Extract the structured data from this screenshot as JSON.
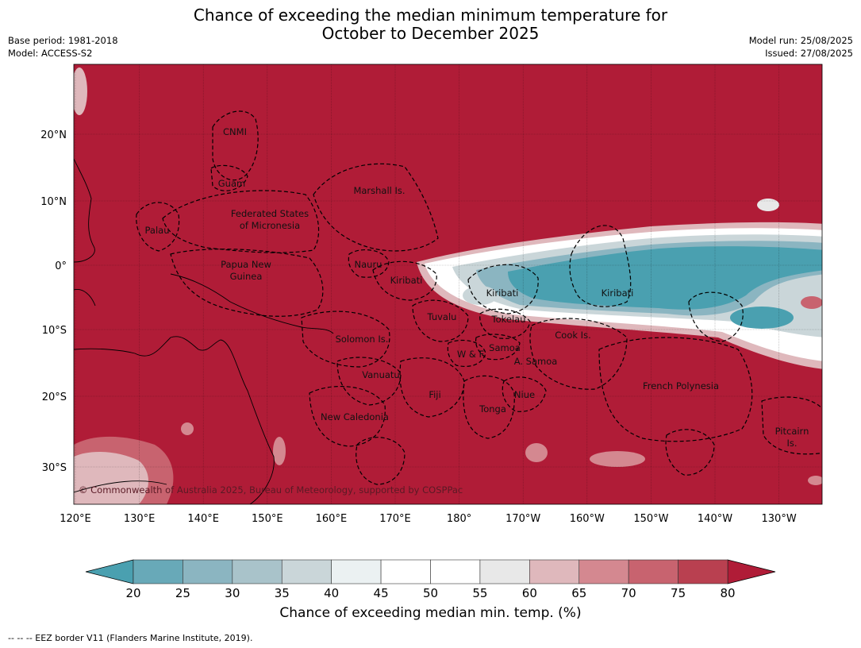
{
  "title_line1": "Chance of exceeding the median minimum temperature for",
  "title_line2": "October to December 2025",
  "meta_left": [
    "Base period: 1981-2018",
    "Model: ACCESS-S2"
  ],
  "meta_right": [
    "Model run: 25/08/2025",
    "Issued: 27/08/2025"
  ],
  "axes": {
    "lon_ticks": [
      "120°E",
      "130°E",
      "140°E",
      "150°E",
      "160°E",
      "170°E",
      "180°",
      "170°W",
      "160°W",
      "150°W",
      "140°W",
      "130°W"
    ],
    "lat_ticks": [
      "20°N",
      "10°N",
      "0°",
      "10°S",
      "20°S",
      "30°S"
    ]
  },
  "regions": [
    "CNMI",
    "Guam",
    "Marshall Is.",
    "Federated States",
    "of Micronesia",
    "Palau",
    "Papua New",
    "Guinea",
    "Nauru",
    "Kiribati",
    "Kiribati",
    "Kiribati",
    "Tuvalu",
    "Tokelau",
    "Cook Is.",
    "Solomon Is.",
    "W & F",
    "Samoa",
    "A. Samoa",
    "Vanuatu",
    "Fiji",
    "Niue",
    "Tonga",
    "French Polynesia",
    "New Caledonia",
    "Pitcairn",
    "Is."
  ],
  "copyright": "© Commonwealth of Australia 2025, Bureau of Meteorology, supported by COSPPac",
  "colorbar": {
    "ticks": [
      "20",
      "25",
      "30",
      "35",
      "40",
      "45",
      "50",
      "55",
      "60",
      "65",
      "70",
      "75",
      "80"
    ],
    "colors": [
      "#68a9b8",
      "#8bb5c1",
      "#a9c3ca",
      "#cad6d9",
      "#ebf1f2",
      "#ffffff",
      "#ffffff",
      "#e8e8e8",
      "#dfb8bc",
      "#d48890",
      "#c8636f",
      "#b94050"
    ],
    "under_color": "#4aa0b0",
    "over_color": "#b01c37",
    "label": "Chance of exceeding median min. temp. (%)"
  },
  "footnote": "--  --  -- EEZ border V11 (Flanders Marine Institute, 2019)."
}
